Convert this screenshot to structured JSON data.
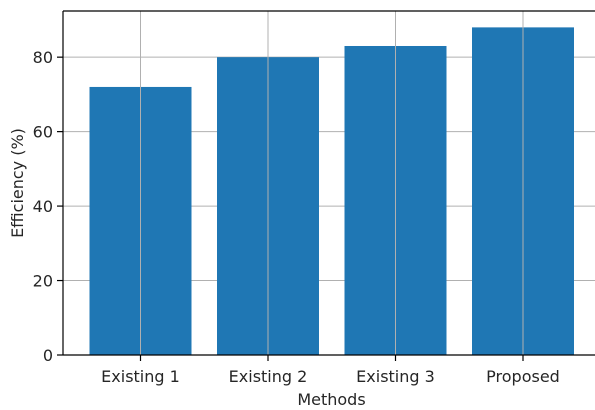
{
  "chart_data": {
    "type": "bar",
    "categories": [
      "Existing 1",
      "Existing 2",
      "Existing 3",
      "Proposed"
    ],
    "values": [
      72,
      80,
      83,
      88
    ],
    "xlabel": "Methods",
    "ylabel": "Efficiency (%)",
    "ylim": [
      0,
      92.4
    ],
    "yticks": [
      0,
      20,
      40,
      60,
      80
    ],
    "grid": true,
    "bar_color": "#1f77b4"
  }
}
